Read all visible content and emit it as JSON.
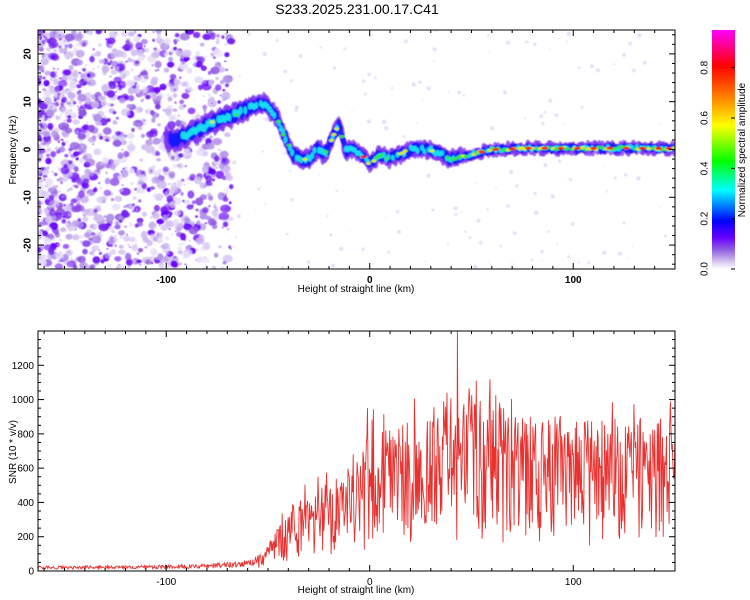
{
  "title": "S233.2025.231.00.17.C41",
  "chart_data": [
    {
      "type": "heatmap",
      "name": "spectrogram",
      "xlabel": "Height of straight line (km)",
      "ylabel": "Frequency (Hz)",
      "xlim": [
        -163,
        150
      ],
      "ylim": [
        -25,
        25
      ],
      "x_ticks": [
        -100,
        0,
        100
      ],
      "y_ticks": [
        -20,
        -10,
        0,
        10,
        20
      ],
      "ridge": {
        "x": [
          -95,
          -85,
          -75,
          -65,
          -58,
          -52,
          -46,
          -42,
          -38,
          -34,
          -30,
          -26,
          -22,
          -18,
          -15,
          -12,
          -8,
          -4,
          0,
          5,
          10,
          20,
          30,
          40,
          50,
          60,
          80,
          100,
          120,
          150
        ],
        "y": [
          2,
          4,
          6,
          7.5,
          9,
          9.5,
          7,
          3,
          -1,
          -2,
          -2,
          0,
          -1,
          3,
          5,
          0,
          0,
          -1,
          -3,
          -1,
          -2,
          0,
          0,
          -2,
          -1,
          0,
          0.3,
          0.2,
          0.3,
          0.2
        ]
      },
      "colorbar": {
        "label": "Normalized spectral amplitude",
        "range": [
          0,
          0.95
        ],
        "ticks": [
          0,
          0.2,
          0.4,
          0.6,
          0.8
        ],
        "tick_labels": [
          "0.0",
          "0.2",
          "0.4",
          "0.6",
          "0.8"
        ],
        "colors": [
          "#ffffff",
          "#d6c7f2",
          "#9060e0",
          "#6a00ff",
          "#0000ff",
          "#00ffff",
          "#00ff00",
          "#ffff00",
          "#ff8000",
          "#ff0000",
          "#ff00ff"
        ]
      }
    },
    {
      "type": "line",
      "name": "snr",
      "xlabel": "Height of straight line (km)",
      "ylabel": "SNR (10 * v/v)",
      "xlim": [
        -163,
        150
      ],
      "ylim": [
        0,
        1400
      ],
      "x_ticks": [
        -100,
        0,
        100
      ],
      "y_ticks": [
        0,
        200,
        400,
        600,
        800,
        1000,
        1200
      ],
      "series": [
        {
          "name": "SNR",
          "color": "#e8312f",
          "envelope_x": [
            -163,
            -120,
            -80,
            -60,
            -50,
            -40,
            -30,
            -20,
            -10,
            -2,
            0,
            10,
            20,
            30,
            40,
            50,
            60,
            80,
            100,
            120,
            150
          ],
          "envelope_y": [
            20,
            22,
            28,
            45,
            90,
            230,
            300,
            330,
            380,
            450,
            560,
            500,
            560,
            590,
            640,
            680,
            650,
            580,
            560,
            560,
            560
          ],
          "peaks": [
            [
              -31,
              380
            ],
            [
              -20,
              330
            ],
            [
              -1,
              950
            ],
            [
              28,
              760
            ],
            [
              38,
              1040
            ],
            [
              43,
              1400
            ],
            [
              54,
              850
            ],
            [
              60,
              880
            ],
            [
              79,
              900
            ],
            [
              92,
              860
            ],
            [
              117,
              800
            ],
            [
              144,
              780
            ]
          ]
        }
      ]
    }
  ]
}
